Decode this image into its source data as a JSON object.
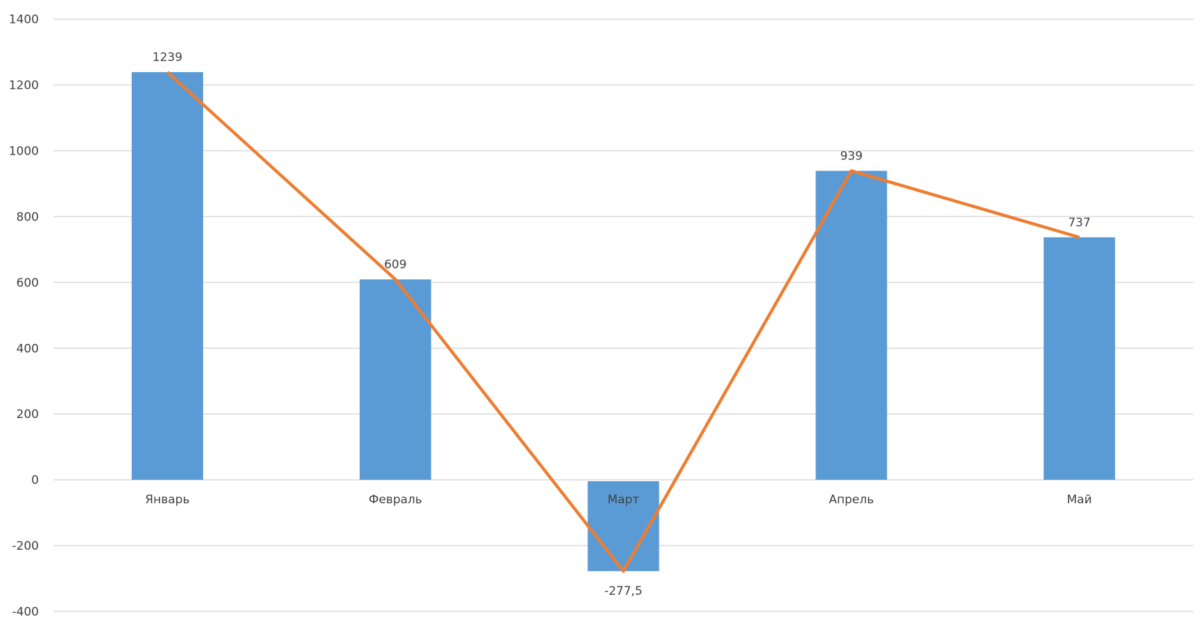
{
  "chart_data": {
    "type": "bar",
    "categories": [
      "Январь",
      "Февраль",
      "Март",
      "Апрель",
      "Май"
    ],
    "series": [
      {
        "type": "bar",
        "values": [
          1239,
          609,
          -277.5,
          939,
          737
        ],
        "color": "#5B9BD5"
      },
      {
        "type": "line",
        "values": [
          1239,
          609,
          -277.5,
          939,
          737
        ],
        "color": "#ED7D31"
      }
    ],
    "data_labels": [
      "1239",
      "609",
      "-277,5",
      "939",
      "737"
    ],
    "ylim": [
      -400,
      1400
    ],
    "yticks": [
      -400,
      -200,
      0,
      200,
      400,
      600,
      800,
      1000,
      1200,
      1400
    ],
    "ytick_labels": [
      "-400",
      "-200",
      "0",
      "200",
      "400",
      "600",
      "800",
      "1000",
      "1200",
      "1400"
    ],
    "grid": true,
    "title": "",
    "xlabel": "",
    "ylabel": "",
    "gridline_color": "#D9D9D9"
  }
}
